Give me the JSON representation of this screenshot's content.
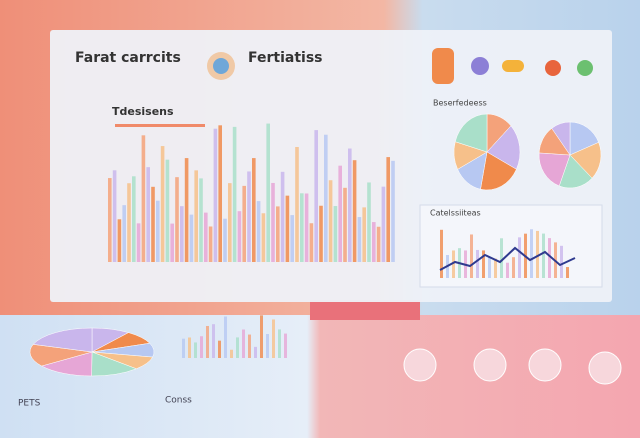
{
  "header": {
    "title": "Farat carrcits",
    "subtitle": "Fertiatiss"
  },
  "panels": {
    "bar_label": "Tdesisens",
    "line_label": "Catelssiiteas",
    "pie_label": "Beserfedeess"
  },
  "footer": {
    "left": "PETS",
    "center": "Conss"
  }
}
